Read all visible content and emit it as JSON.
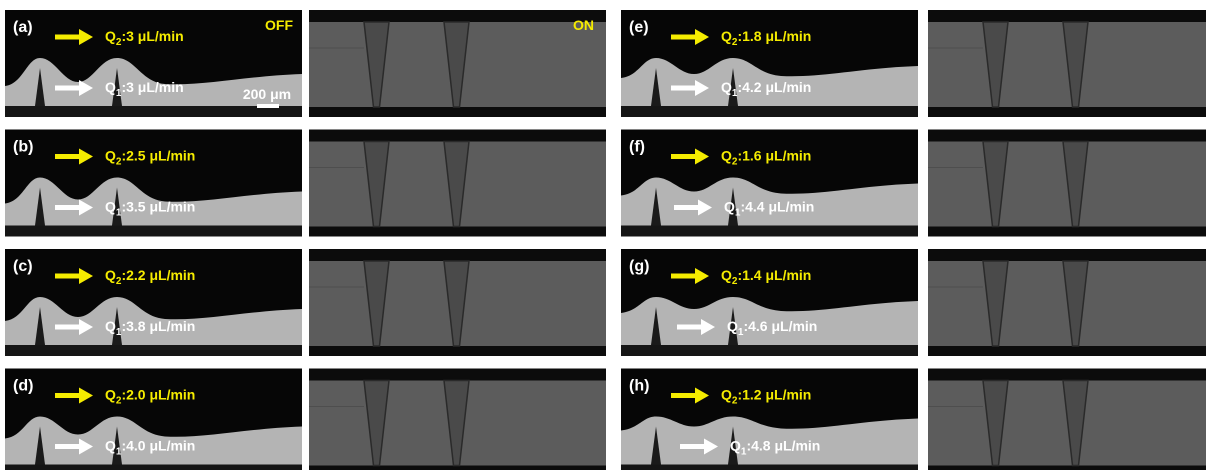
{
  "figure": {
    "state_off": "OFF",
    "state_on": "ON",
    "scale_bar": "200 μm",
    "panels": [
      {
        "label": "(a)",
        "q2": {
          "symbol": "Q",
          "subscript": "2",
          "rate": ":3 μL/min"
        },
        "q1": {
          "symbol": "Q",
          "subscript": "1",
          "rate": ":3 μL/min"
        }
      },
      {
        "label": "(b)",
        "q2": {
          "symbol": "Q",
          "subscript": "2",
          "rate": ":2.5 μL/min"
        },
        "q1": {
          "symbol": "Q",
          "subscript": "1",
          "rate": ":3.5 μL/min"
        }
      },
      {
        "label": "(c)",
        "q2": {
          "symbol": "Q",
          "subscript": "2",
          "rate": ":2.2 μL/min"
        },
        "q1": {
          "symbol": "Q",
          "subscript": "1",
          "rate": ":3.8 μL/min"
        }
      },
      {
        "label": "(d)",
        "q2": {
          "symbol": "Q",
          "subscript": "2",
          "rate": ":2.0 μL/min"
        },
        "q1": {
          "symbol": "Q",
          "subscript": "1",
          "rate": ":4.0 μL/min"
        }
      },
      {
        "label": "(e)",
        "q2": {
          "symbol": "Q",
          "subscript": "2",
          "rate": ":1.8 μL/min"
        },
        "q1": {
          "symbol": "Q",
          "subscript": "1",
          "rate": ":4.2 μL/min"
        }
      },
      {
        "label": "(f)",
        "q2": {
          "symbol": "Q",
          "subscript": "2",
          "rate": ":1.6 μL/min"
        },
        "q1": {
          "symbol": "Q",
          "subscript": "1",
          "rate": ":4.4 μL/min"
        }
      },
      {
        "label": "(g)",
        "q2": {
          "symbol": "Q",
          "subscript": "2",
          "rate": ":1.4 μL/min"
        },
        "q1": {
          "symbol": "Q",
          "subscript": "1",
          "rate": ":4.6 μL/min"
        }
      },
      {
        "label": "(h)",
        "q2": {
          "symbol": "Q",
          "subscript": "2",
          "rate": ":1.2 μL/min"
        },
        "q1": {
          "symbol": "Q",
          "subscript": "1",
          "rate": ":4.8 μL/min"
        }
      }
    ]
  }
}
